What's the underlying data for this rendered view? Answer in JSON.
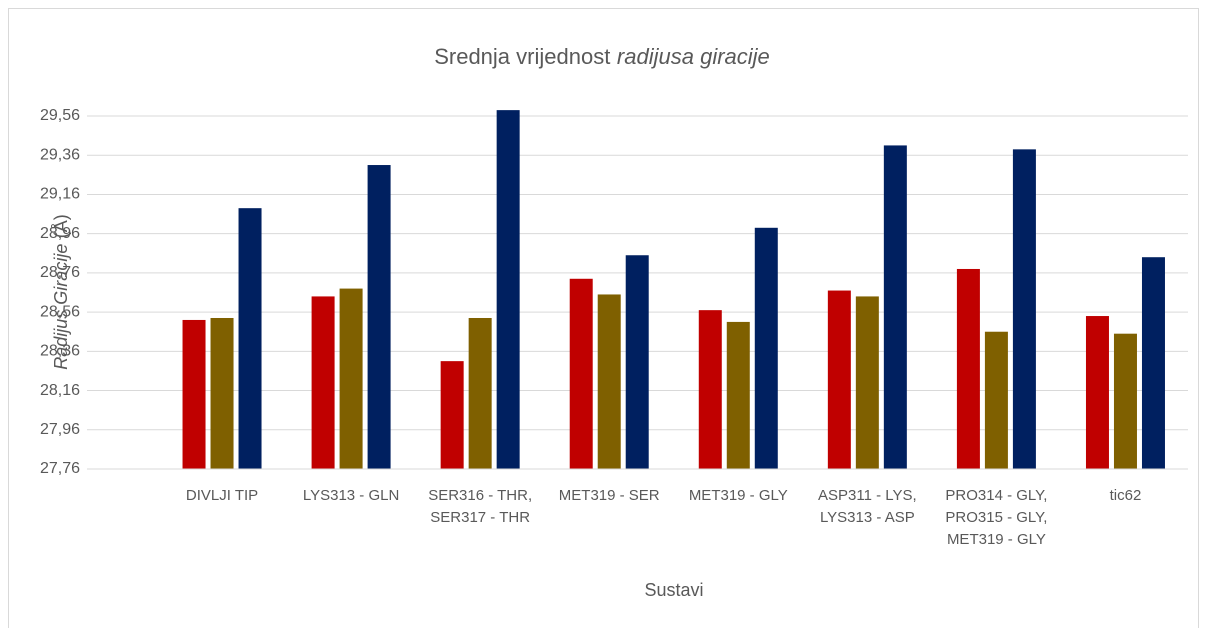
{
  "chart_data": {
    "type": "bar",
    "title": [
      {
        "text": "Srednja vrijednost",
        "italic": false
      },
      {
        "text": "radijusa giracije",
        "italic": true
      }
    ],
    "y_label": [
      {
        "text": "Radijus Giracije",
        "italic": true
      },
      {
        "text": "(Å)",
        "italic": false
      }
    ],
    "x_label": "Sustavi",
    "categories": [
      "DIVLJI TIP",
      "LYS313 - GLN",
      "SER316 - THR, SER317 - THR",
      "MET319 - SER",
      "MET319 - GLY",
      "ASP311 - LYS, LYS313 - ASP",
      "PRO314 - GLY, PRO315 - GLY, MET319 - GLY",
      "tic62"
    ],
    "series": [
      {
        "color": "#c00000",
        "values": [
          28.52,
          28.64,
          28.31,
          28.73,
          28.57,
          28.67,
          28.78,
          28.54
        ]
      },
      {
        "color": "#7f6000",
        "values": [
          28.53,
          28.68,
          28.53,
          28.65,
          28.51,
          28.64,
          28.46,
          28.45
        ]
      },
      {
        "color": "#002060",
        "values": [
          29.09,
          29.31,
          29.59,
          28.85,
          28.99,
          29.41,
          29.39,
          28.84
        ]
      }
    ],
    "ylim": [
      27.76,
      29.64
    ],
    "yticks": [
      {
        "value": 27.76,
        "label": "27,76"
      },
      {
        "value": 27.96,
        "label": "27,96"
      },
      {
        "value": 28.16,
        "label": "28,16"
      },
      {
        "value": 28.36,
        "label": "28,36"
      },
      {
        "value": 28.56,
        "label": "28,56"
      },
      {
        "value": 28.76,
        "label": "28,76"
      },
      {
        "value": 28.96,
        "label": "28,96"
      },
      {
        "value": 29.16,
        "label": "29,16"
      },
      {
        "value": 29.36,
        "label": "29,36"
      },
      {
        "value": 29.56,
        "label": "29,56"
      }
    ],
    "grid": true
  }
}
